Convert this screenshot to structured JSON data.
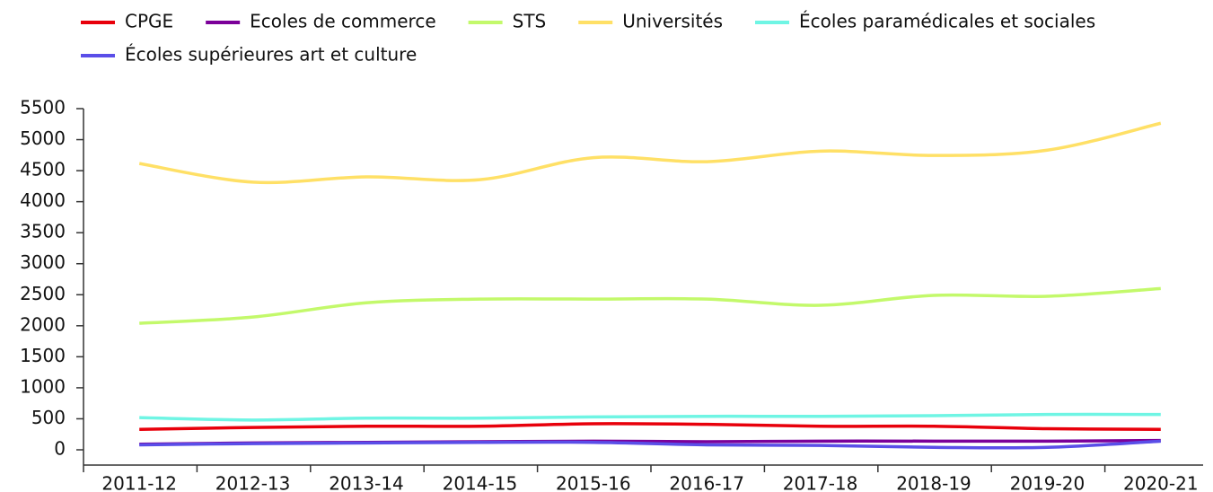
{
  "chart_data": {
    "type": "line",
    "categories": [
      "2011-12",
      "2012-13",
      "2013-14",
      "2014-15",
      "2015-16",
      "2016-17",
      "2017-18",
      "2018-19",
      "2019-20",
      "2020-21"
    ],
    "series": [
      {
        "name": "CPGE",
        "color": "#e8000b",
        "values": [
          330,
          360,
          380,
          380,
          420,
          410,
          380,
          380,
          340,
          330
        ]
      },
      {
        "name": "Ecoles de commerce",
        "color": "#7b0099",
        "values": [
          90,
          110,
          120,
          130,
          140,
          130,
          140,
          140,
          140,
          150
        ]
      },
      {
        "name": "STS",
        "color": "#c3f96b",
        "values": [
          2040,
          2140,
          2370,
          2430,
          2430,
          2430,
          2330,
          2490,
          2475,
          2600
        ]
      },
      {
        "name": "Universités",
        "color": "#ffe066",
        "values": [
          4615,
          4315,
          4400,
          4355,
          4710,
          4645,
          4815,
          4745,
          4830,
          5265
        ]
      },
      {
        "name": "Écoles paramédicales et sociales",
        "color": "#6ff5e4",
        "values": [
          520,
          480,
          510,
          510,
          530,
          540,
          540,
          550,
          570,
          570
        ]
      },
      {
        "name": "Écoles supérieures art et culture",
        "color": "#5a4ee8",
        "values": [
          80,
          100,
          110,
          120,
          120,
          80,
          70,
          40,
          40,
          140
        ]
      }
    ],
    "ylim": [
      0,
      5500
    ],
    "yticks": [
      0,
      500,
      1000,
      1500,
      2000,
      2500,
      3000,
      3500,
      4000,
      4500,
      5000,
      5500
    ],
    "legend": "top"
  }
}
